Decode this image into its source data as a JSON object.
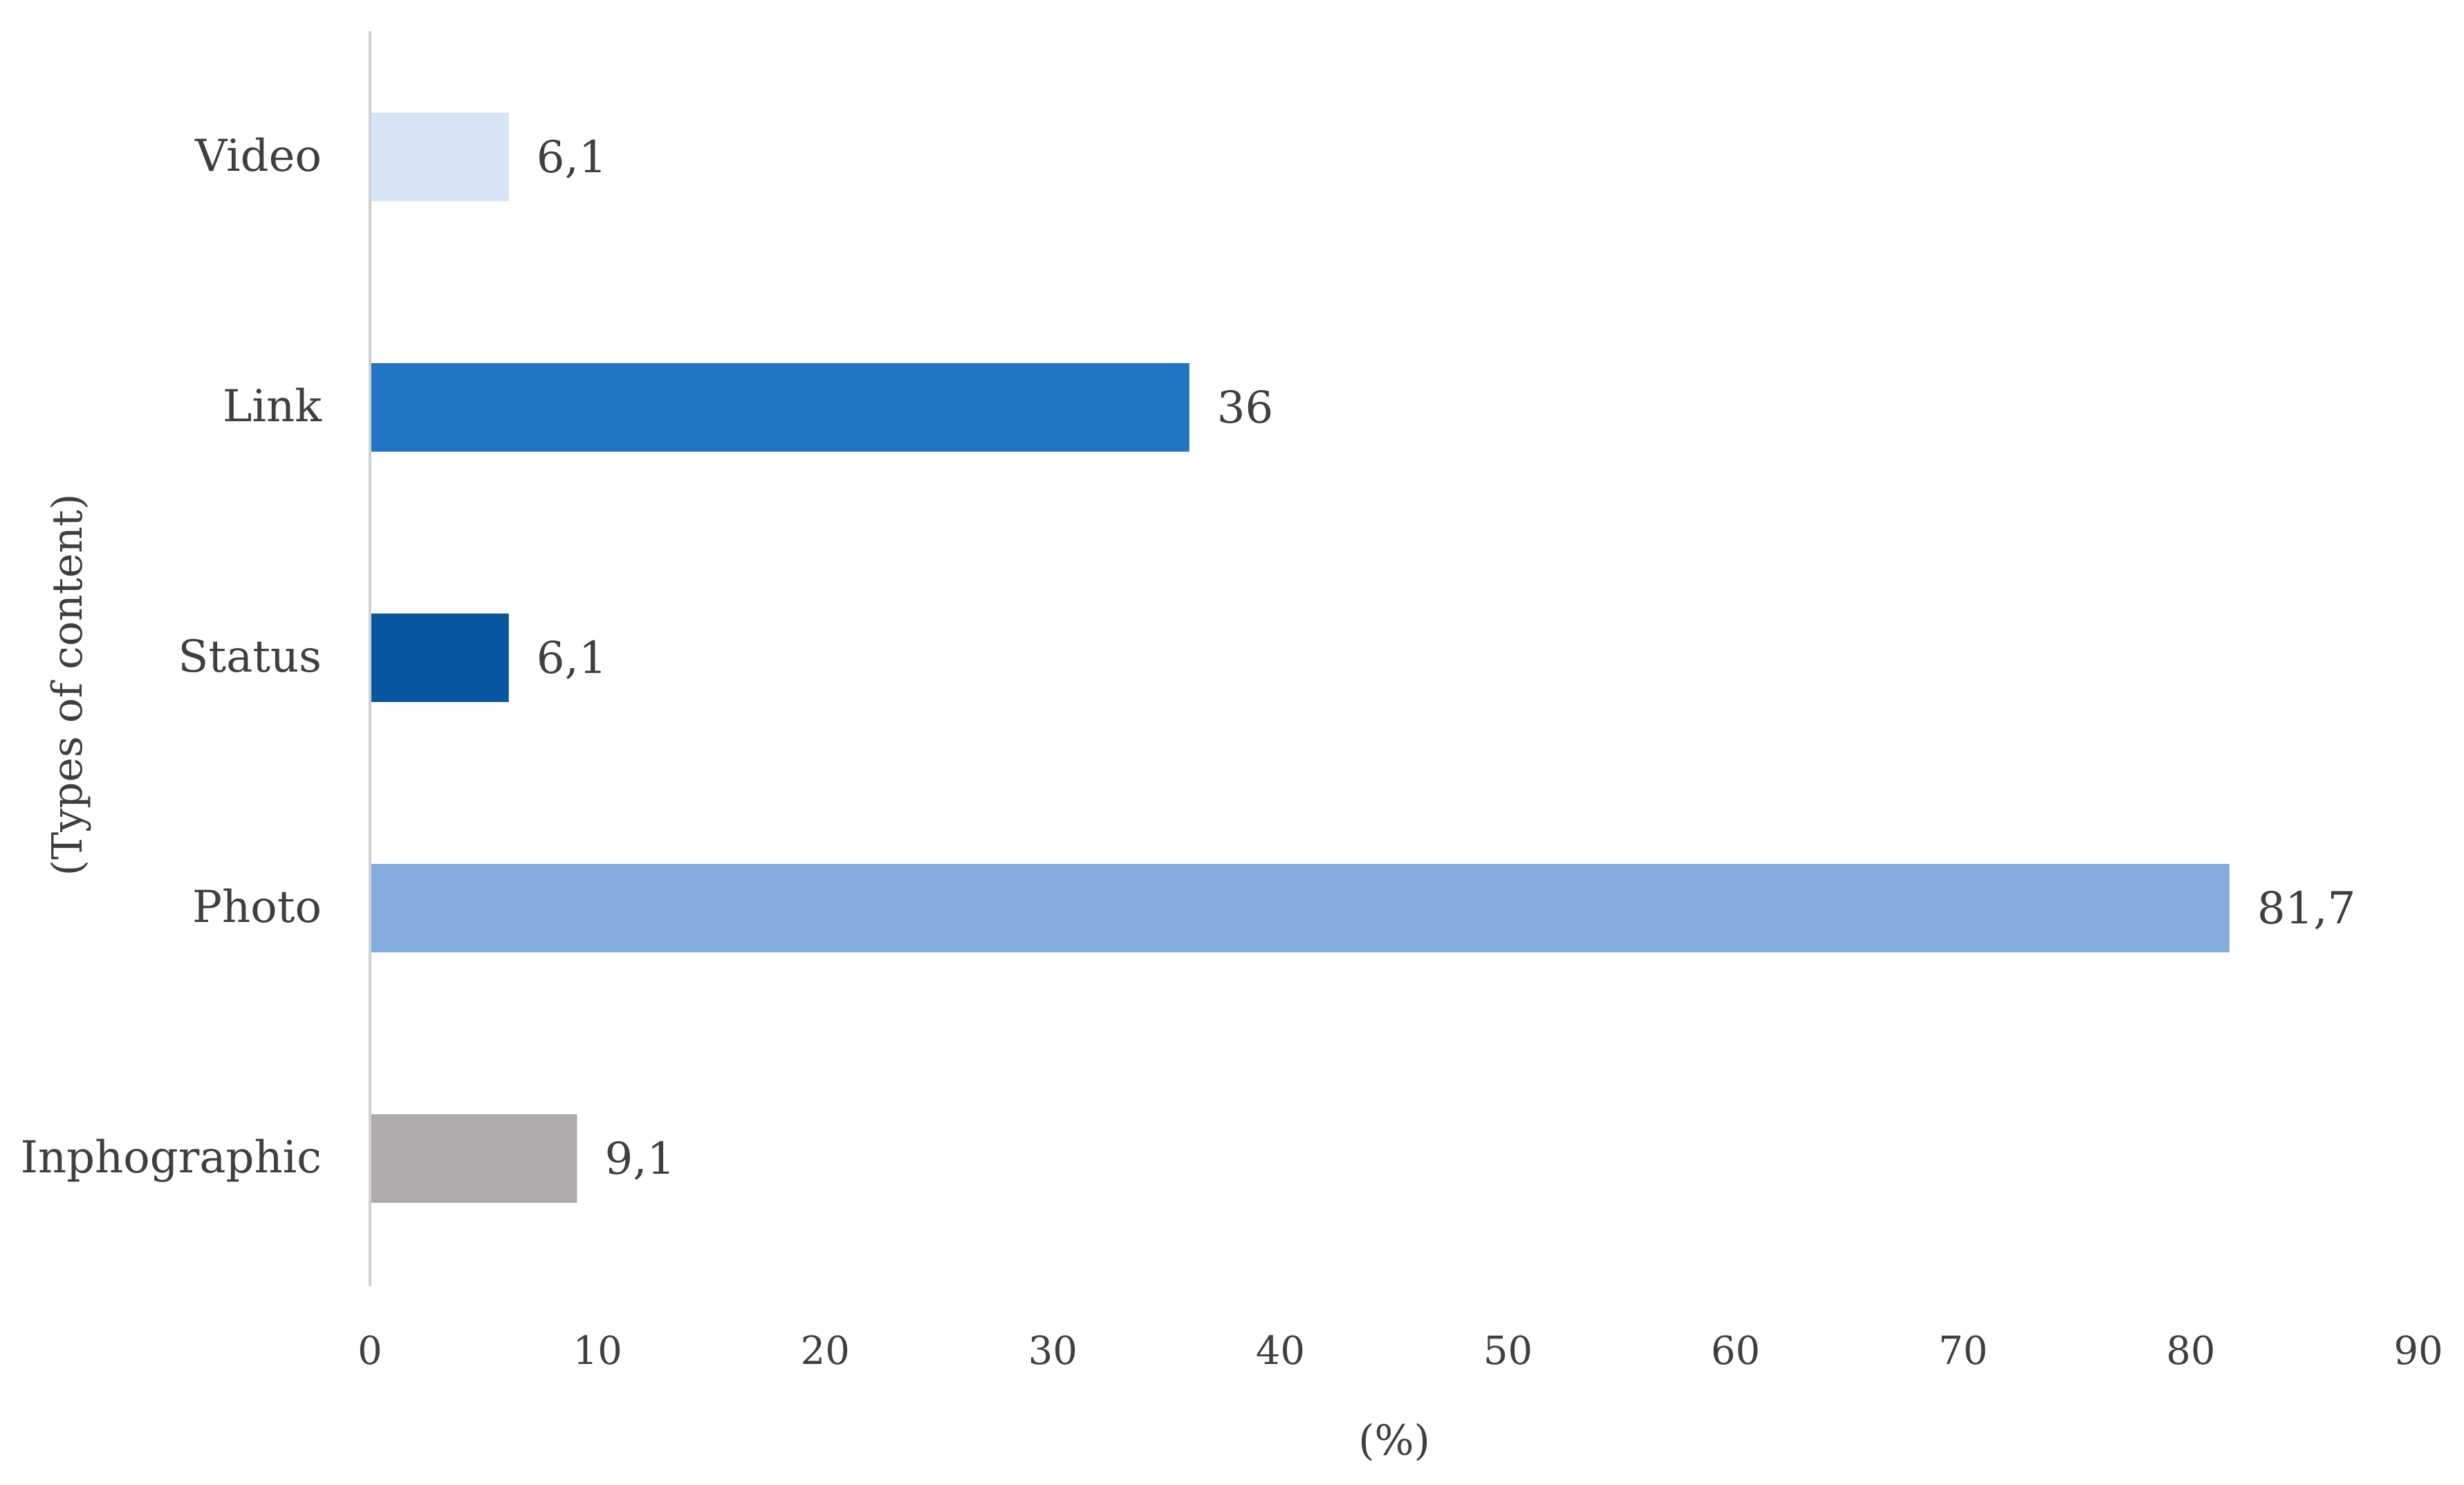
{
  "chart_data": {
    "type": "bar",
    "orientation": "horizontal",
    "categories": [
      "Video",
      "Link",
      "Status",
      "Photo",
      "Inphographic"
    ],
    "values": [
      6.1,
      36,
      6.1,
      81.7,
      9.1
    ],
    "value_labels": [
      "6,1",
      "36",
      "6,1",
      "81,7",
      "9,1"
    ],
    "colors": [
      "#d7e4f4",
      "#1f74c3",
      "#06579f",
      "#86acdd",
      "#b0acab"
    ],
    "xlabel": "(%)",
    "ylabel": "(Types of content)",
    "xlim": [
      0,
      90
    ],
    "xticks": [
      0,
      10,
      20,
      30,
      40,
      50,
      60,
      70,
      80,
      90
    ],
    "grid": false,
    "legend": "none"
  }
}
